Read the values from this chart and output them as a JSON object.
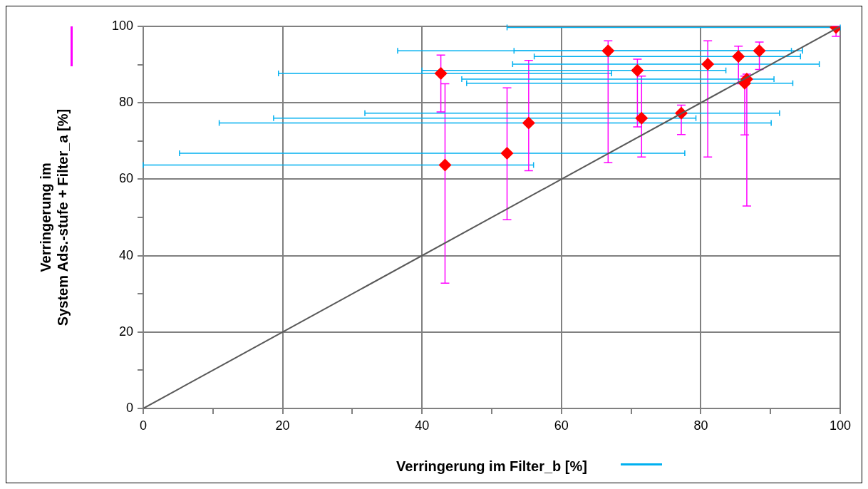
{
  "chart_data": {
    "type": "scatter",
    "xlabel": "Verringerung im Filter_b [%]",
    "ylabel": "Verringerung im\nSystem Ads.-stufe + Filter_a [%]",
    "xlim": [
      0,
      100
    ],
    "ylim": [
      0,
      100
    ],
    "xticks": [
      0,
      {
        "value": 10,
        "label": null
      },
      20,
      {
        "value": 30,
        "label": null
      },
      40,
      {
        "value": 50,
        "label": null
      },
      60,
      {
        "value": 70,
        "label": null
      },
      80,
      {
        "value": 90,
        "label": null
      },
      100
    ],
    "yticks": [
      0,
      {
        "value": 10,
        "label": null
      },
      20,
      {
        "value": 30,
        "label": null
      },
      40,
      {
        "value": 50,
        "label": null
      },
      60,
      {
        "value": 70,
        "label": null
      },
      80,
      {
        "value": 90,
        "label": null
      },
      100
    ],
    "grid": true,
    "series": [
      {
        "color": "#ff0000",
        "marker": "diamond",
        "x": [
          42.7,
          43.3,
          52.2,
          55.3,
          66.7,
          70.9,
          71.5,
          77.2,
          81.0,
          85.4,
          88.4,
          86.3,
          86.6,
          99.4
        ],
        "values": [
          87.7,
          63.7,
          66.8,
          74.7,
          93.6,
          88.5,
          76.0,
          77.3,
          90.1,
          92.1,
          93.6,
          85.1,
          86.2,
          99.7
        ],
        "errors": [
          [
            77.6,
            92.5
          ],
          [
            32.8,
            85.0
          ],
          [
            49.4,
            83.9
          ],
          [
            62.2,
            91.1
          ],
          [
            64.3,
            96.2
          ],
          [
            73.7,
            91.4
          ],
          [
            65.8,
            87.0
          ],
          [
            71.7,
            79.4
          ],
          [
            65.8,
            96.2
          ],
          [
            85.0,
            94.8
          ],
          [
            88.7,
            95.9
          ],
          [
            71.6,
            87.0
          ],
          [
            53.0,
            87.5
          ],
          [
            97.4,
            100
          ]
        ],
        "xerrors": [
          [
            19.4,
            67.2
          ],
          [
            0,
            56.0
          ],
          [
            5.2,
            77.7
          ],
          [
            10.9,
            90.1
          ],
          [
            36.5,
            94.6
          ],
          [
            40.0,
            83.6
          ],
          [
            18.7,
            79.3
          ],
          [
            31.8,
            91.3
          ],
          [
            53.0,
            97.0
          ],
          [
            56.1,
            94.3
          ],
          [
            53.2,
            93.0
          ],
          [
            46.4,
            93.2
          ],
          [
            45.7,
            90.5
          ],
          [
            52.2,
            100
          ]
        ]
      },
      {
        "type": "line",
        "color": "#595959",
        "marker": "none",
        "line_style": "solid",
        "x": [
          0,
          100
        ],
        "values": [
          0,
          100
        ]
      }
    ]
  }
}
